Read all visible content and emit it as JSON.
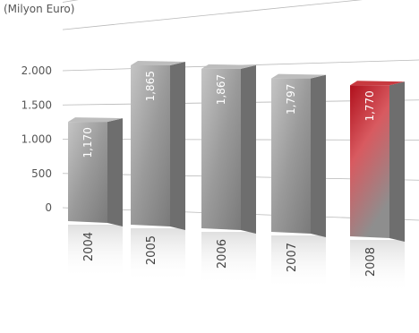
{
  "chart_data": {
    "type": "bar",
    "title": "",
    "unit_label": "(Milyon Euro)",
    "xlabel": "",
    "ylabel": "",
    "categories": [
      "2004",
      "2005",
      "2006",
      "2007",
      "2008"
    ],
    "values": [
      1170,
      1865,
      1867,
      1797,
      1770
    ],
    "value_labels": [
      "1,170",
      "1,865",
      "1,867",
      "1,797",
      "1,770"
    ],
    "y_ticks": [
      {
        "value": 0,
        "label": "0"
      },
      {
        "value": 500,
        "label": "500"
      },
      {
        "value": 1000,
        "label": "1.000"
      },
      {
        "value": 1500,
        "label": "1.500"
      },
      {
        "value": 2000,
        "label": "2.000"
      }
    ],
    "ylim": [
      0,
      2500
    ],
    "grid": true,
    "colors": {
      "bar": "#8c8c8c",
      "highlight": "#c0202a",
      "grid": "#b8b8b8"
    },
    "highlight_index": 4
  }
}
